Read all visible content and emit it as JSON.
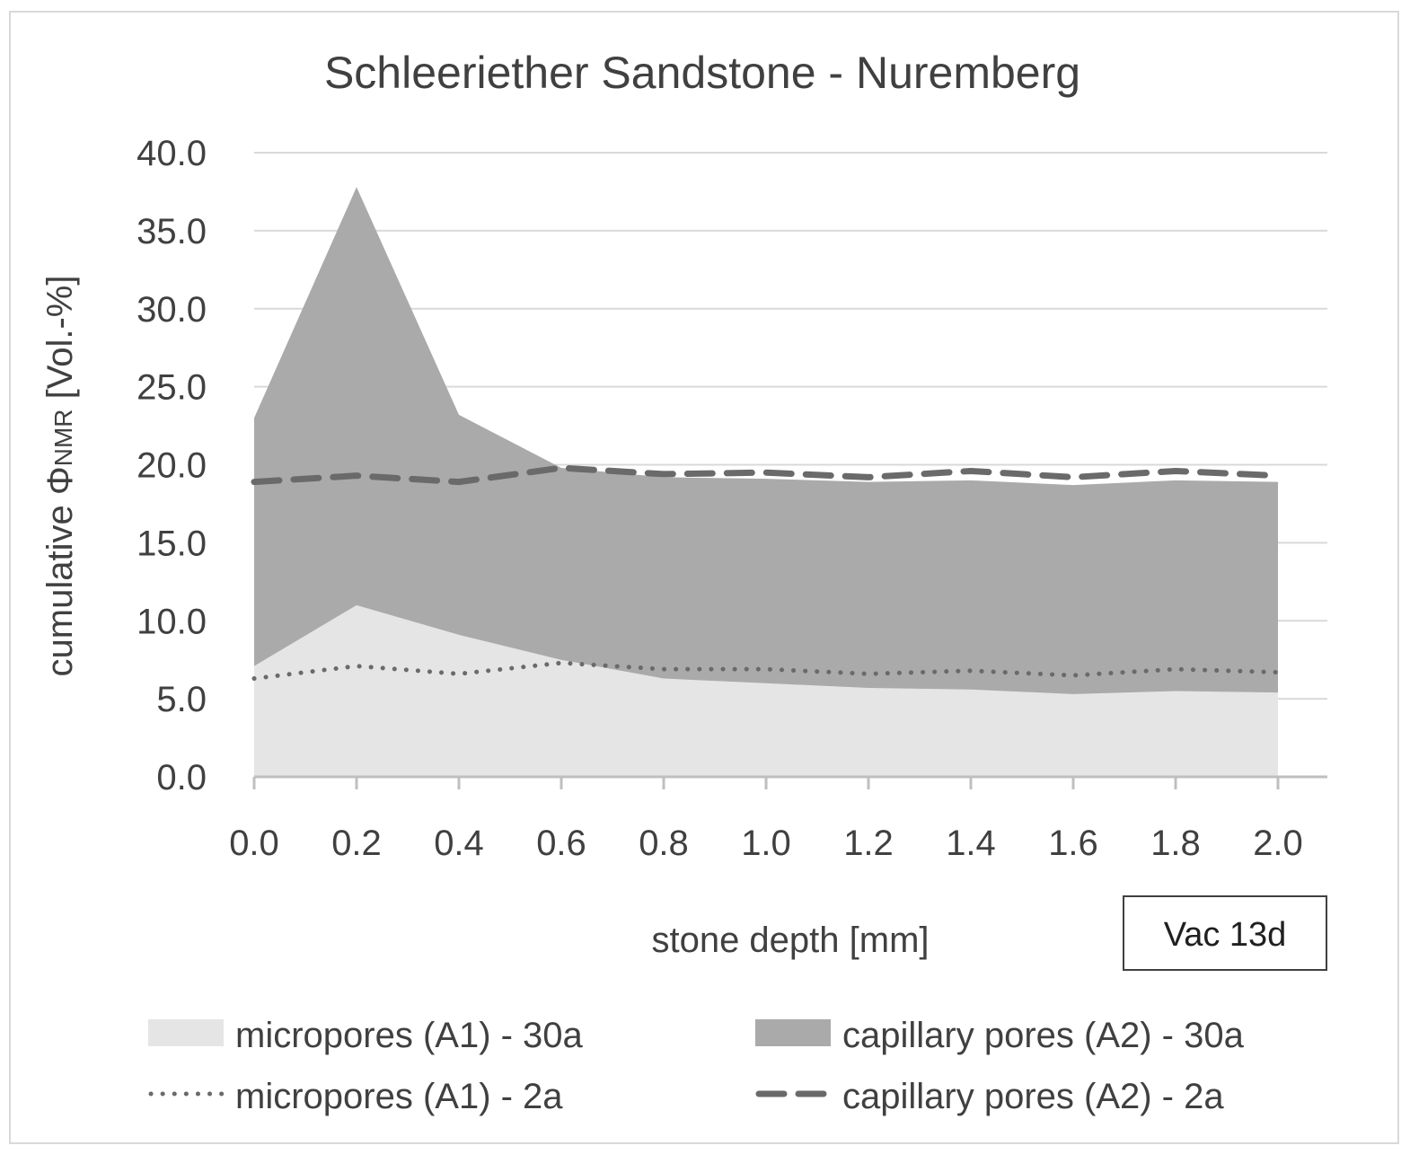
{
  "chart_data": {
    "type": "area",
    "title": "Schleeriether Sandstone - Nuremberg",
    "xlabel": "stone depth [mm]",
    "ylabel_prefix": "cumulative Φ",
    "ylabel_subscript": "NMR",
    "ylabel_suffix": " [Vol.-%]",
    "ylim": [
      0,
      40
    ],
    "yticks": [
      "0.0",
      "5.0",
      "10.0",
      "15.0",
      "20.0",
      "25.0",
      "30.0",
      "35.0",
      "40.0"
    ],
    "x": [
      0.0,
      0.2,
      0.4,
      0.6,
      0.8,
      1.0,
      1.2,
      1.4,
      1.6,
      1.8,
      2.0
    ],
    "xticks": [
      "0.0",
      "0.2",
      "0.4",
      "0.6",
      "0.8",
      "1.0",
      "1.2",
      "1.4",
      "1.6",
      "1.8",
      "2.0"
    ],
    "grid": true,
    "legend_position": "bottom",
    "annotation": "Vac 13d",
    "series": [
      {
        "name": "micropores (A1) - 30a",
        "style": "area",
        "color": "#e6e5e5",
        "values": [
          7.1,
          11.0,
          9.1,
          7.5,
          6.3,
          6.0,
          5.7,
          5.6,
          5.3,
          5.5,
          5.4
        ]
      },
      {
        "name": "capillary pores (A2) - 30a",
        "style": "area",
        "color": "#abaaaa",
        "values": [
          23.0,
          37.8,
          23.2,
          19.8,
          19.2,
          19.1,
          18.9,
          19.0,
          18.7,
          19.0,
          18.9
        ]
      },
      {
        "name": "micropores (A1) - 2a",
        "style": "dotted",
        "color": "#6a6a6a",
        "values": [
          6.3,
          7.1,
          6.6,
          7.3,
          6.9,
          6.9,
          6.6,
          6.8,
          6.5,
          6.9,
          6.7
        ]
      },
      {
        "name": "capillary pores (A2) - 2a",
        "style": "dashed",
        "color": "#6a6a6a",
        "values": [
          18.9,
          19.3,
          18.9,
          19.8,
          19.4,
          19.5,
          19.2,
          19.6,
          19.2,
          19.6,
          19.3
        ]
      }
    ]
  }
}
